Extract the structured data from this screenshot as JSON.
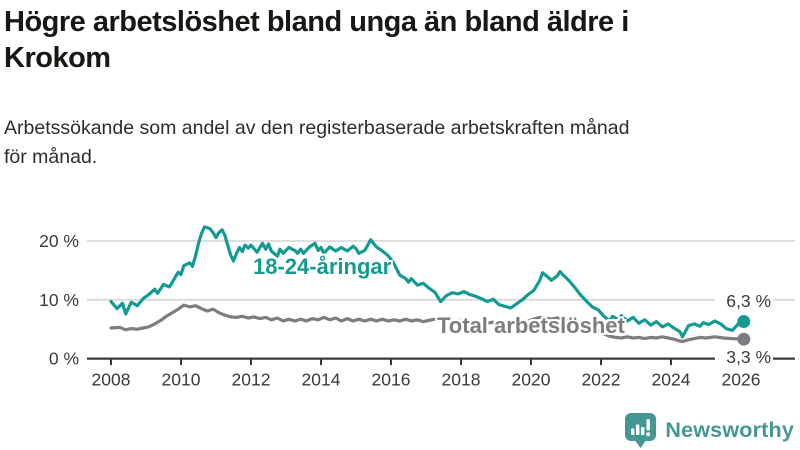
{
  "page": {
    "background": "#ffffff"
  },
  "header": {
    "title_line1": "Högre arbetslöshet bland unga än bland äldre i",
    "title_line2": "Krokom",
    "subtitle_line1": "Arbetssökande som andel av den registerbaserade arbetskraften månad",
    "subtitle_line2": "för månad."
  },
  "chart_data": {
    "type": "line",
    "title": "Högre arbetslöshet bland unga än bland äldre i Krokom",
    "subtitle": "Arbetssökande som andel av den registerbaserade arbetskraften månad för månad.",
    "unit": "%",
    "grid": true,
    "legend": "inline-labels",
    "xlim": [
      2008,
      2026.3
    ],
    "ylim": [
      0,
      25
    ],
    "x_ticks": [
      "2008",
      "2010",
      "2012",
      "2014",
      "2016",
      "2018",
      "2020",
      "2022",
      "2024",
      "2026"
    ],
    "y_ticks": [
      {
        "label": "20 %",
        "value": 20
      },
      {
        "label": "10 %",
        "value": 10
      },
      {
        "label": "0 %",
        "value": 0
      }
    ],
    "axis_color": "#3a3a3a",
    "grid_color": "#d9d9d9",
    "tick_label_color": "#3a3a3a",
    "series": [
      {
        "name": "18-24-åringar",
        "color": "#149a93",
        "end_label": "6,3 %",
        "end_value": 6.3,
        "points": [
          [
            2008.0,
            9.7
          ],
          [
            2008.17,
            8.5
          ],
          [
            2008.33,
            9.4
          ],
          [
            2008.42,
            7.6
          ],
          [
            2008.58,
            9.6
          ],
          [
            2008.75,
            9.0
          ],
          [
            2008.92,
            10.2
          ],
          [
            2009.08,
            10.9
          ],
          [
            2009.25,
            11.8
          ],
          [
            2009.33,
            11.1
          ],
          [
            2009.5,
            12.6
          ],
          [
            2009.67,
            12.2
          ],
          [
            2009.83,
            13.8
          ],
          [
            2009.92,
            14.7
          ],
          [
            2010.0,
            14.3
          ],
          [
            2010.08,
            15.8
          ],
          [
            2010.25,
            16.3
          ],
          [
            2010.33,
            15.7
          ],
          [
            2010.42,
            17.6
          ],
          [
            2010.5,
            19.6
          ],
          [
            2010.58,
            21.2
          ],
          [
            2010.67,
            22.4
          ],
          [
            2010.83,
            22.1
          ],
          [
            2010.92,
            21.4
          ],
          [
            2011.0,
            20.6
          ],
          [
            2011.08,
            21.4
          ],
          [
            2011.17,
            21.9
          ],
          [
            2011.25,
            21.0
          ],
          [
            2011.33,
            19.4
          ],
          [
            2011.42,
            17.6
          ],
          [
            2011.5,
            16.6
          ],
          [
            2011.58,
            17.8
          ],
          [
            2011.67,
            18.9
          ],
          [
            2011.75,
            18.2
          ],
          [
            2011.83,
            19.3
          ],
          [
            2011.92,
            18.8
          ],
          [
            2012.0,
            19.3
          ],
          [
            2012.17,
            18.1
          ],
          [
            2012.33,
            19.6
          ],
          [
            2012.42,
            18.6
          ],
          [
            2012.5,
            19.5
          ],
          [
            2012.58,
            18.3
          ],
          [
            2012.75,
            17.4
          ],
          [
            2012.83,
            18.6
          ],
          [
            2012.92,
            17.9
          ],
          [
            2013.08,
            18.9
          ],
          [
            2013.25,
            18.4
          ],
          [
            2013.33,
            17.9
          ],
          [
            2013.42,
            18.6
          ],
          [
            2013.5,
            17.9
          ],
          [
            2013.67,
            19.0
          ],
          [
            2013.83,
            19.6
          ],
          [
            2013.92,
            18.4
          ],
          [
            2014.0,
            18.9
          ],
          [
            2014.08,
            17.9
          ],
          [
            2014.25,
            19.0
          ],
          [
            2014.42,
            18.3
          ],
          [
            2014.58,
            18.9
          ],
          [
            2014.75,
            18.3
          ],
          [
            2014.92,
            19.1
          ],
          [
            2015.0,
            18.7
          ],
          [
            2015.08,
            17.9
          ],
          [
            2015.25,
            18.4
          ],
          [
            2015.42,
            20.2
          ],
          [
            2015.58,
            19.0
          ],
          [
            2015.75,
            18.3
          ],
          [
            2015.92,
            17.5
          ],
          [
            2016.08,
            16.2
          ],
          [
            2016.25,
            14.2
          ],
          [
            2016.42,
            13.6
          ],
          [
            2016.5,
            13.0
          ],
          [
            2016.58,
            13.6
          ],
          [
            2016.75,
            12.5
          ],
          [
            2016.92,
            12.8
          ],
          [
            2017.08,
            12.0
          ],
          [
            2017.25,
            11.3
          ],
          [
            2017.42,
            9.7
          ],
          [
            2017.58,
            10.7
          ],
          [
            2017.75,
            11.2
          ],
          [
            2017.92,
            11.0
          ],
          [
            2018.08,
            11.4
          ],
          [
            2018.25,
            10.9
          ],
          [
            2018.42,
            10.6
          ],
          [
            2018.58,
            10.2
          ],
          [
            2018.75,
            9.7
          ],
          [
            2018.92,
            10.1
          ],
          [
            2019.08,
            9.2
          ],
          [
            2019.25,
            8.9
          ],
          [
            2019.42,
            8.6
          ],
          [
            2019.58,
            9.3
          ],
          [
            2019.75,
            10.0
          ],
          [
            2019.92,
            10.9
          ],
          [
            2020.08,
            11.6
          ],
          [
            2020.25,
            13.3
          ],
          [
            2020.33,
            14.6
          ],
          [
            2020.5,
            13.8
          ],
          [
            2020.58,
            13.3
          ],
          [
            2020.75,
            14.1
          ],
          [
            2020.83,
            14.8
          ],
          [
            2020.92,
            14.2
          ],
          [
            2021.08,
            13.3
          ],
          [
            2021.25,
            12.1
          ],
          [
            2021.42,
            10.8
          ],
          [
            2021.58,
            9.8
          ],
          [
            2021.75,
            8.8
          ],
          [
            2021.92,
            8.3
          ],
          [
            2022.08,
            7.2
          ],
          [
            2022.25,
            6.4
          ],
          [
            2022.33,
            7.2
          ],
          [
            2022.5,
            6.6
          ],
          [
            2022.58,
            7.3
          ],
          [
            2022.75,
            6.4
          ],
          [
            2022.92,
            7.0
          ],
          [
            2023.08,
            6.0
          ],
          [
            2023.25,
            6.6
          ],
          [
            2023.42,
            5.7
          ],
          [
            2023.58,
            6.3
          ],
          [
            2023.75,
            5.4
          ],
          [
            2023.92,
            5.9
          ],
          [
            2024.08,
            5.2
          ],
          [
            2024.25,
            4.6
          ],
          [
            2024.33,
            3.7
          ],
          [
            2024.5,
            5.6
          ],
          [
            2024.67,
            5.9
          ],
          [
            2024.83,
            5.5
          ],
          [
            2024.92,
            6.1
          ],
          [
            2025.08,
            5.8
          ],
          [
            2025.25,
            6.4
          ],
          [
            2025.42,
            5.9
          ],
          [
            2025.58,
            5.1
          ],
          [
            2025.75,
            4.8
          ],
          [
            2025.92,
            5.9
          ],
          [
            2026.08,
            6.3
          ]
        ]
      },
      {
        "name": "Total arbetslöshet",
        "color": "#7d7d81",
        "end_label": "3,3 %",
        "end_value": 3.3,
        "points": [
          [
            2008.0,
            5.2
          ],
          [
            2008.25,
            5.3
          ],
          [
            2008.42,
            4.9
          ],
          [
            2008.58,
            5.1
          ],
          [
            2008.75,
            5.0
          ],
          [
            2008.92,
            5.2
          ],
          [
            2009.08,
            5.4
          ],
          [
            2009.25,
            5.9
          ],
          [
            2009.42,
            6.5
          ],
          [
            2009.58,
            7.2
          ],
          [
            2009.75,
            7.8
          ],
          [
            2009.92,
            8.4
          ],
          [
            2010.08,
            9.1
          ],
          [
            2010.25,
            8.8
          ],
          [
            2010.42,
            9.0
          ],
          [
            2010.58,
            8.5
          ],
          [
            2010.75,
            8.1
          ],
          [
            2010.92,
            8.4
          ],
          [
            2011.08,
            7.8
          ],
          [
            2011.25,
            7.4
          ],
          [
            2011.42,
            7.1
          ],
          [
            2011.58,
            7.0
          ],
          [
            2011.75,
            7.2
          ],
          [
            2011.92,
            6.9
          ],
          [
            2012.08,
            7.1
          ],
          [
            2012.25,
            6.8
          ],
          [
            2012.42,
            7.0
          ],
          [
            2012.58,
            6.6
          ],
          [
            2012.75,
            6.9
          ],
          [
            2012.92,
            6.4
          ],
          [
            2013.08,
            6.7
          ],
          [
            2013.25,
            6.4
          ],
          [
            2013.42,
            6.7
          ],
          [
            2013.58,
            6.4
          ],
          [
            2013.75,
            6.8
          ],
          [
            2013.92,
            6.6
          ],
          [
            2014.08,
            7.0
          ],
          [
            2014.25,
            6.6
          ],
          [
            2014.42,
            6.9
          ],
          [
            2014.58,
            6.4
          ],
          [
            2014.75,
            6.8
          ],
          [
            2014.92,
            6.4
          ],
          [
            2015.08,
            6.7
          ],
          [
            2015.25,
            6.4
          ],
          [
            2015.42,
            6.7
          ],
          [
            2015.58,
            6.4
          ],
          [
            2015.75,
            6.7
          ],
          [
            2015.92,
            6.4
          ],
          [
            2016.08,
            6.6
          ],
          [
            2016.25,
            6.4
          ],
          [
            2016.42,
            6.7
          ],
          [
            2016.58,
            6.4
          ],
          [
            2016.75,
            6.6
          ],
          [
            2016.92,
            6.3
          ],
          [
            2017.08,
            6.5
          ],
          [
            2017.25,
            6.7
          ],
          [
            2017.42,
            6.4
          ],
          [
            2017.58,
            6.6
          ],
          [
            2017.75,
            6.3
          ],
          [
            2017.92,
            6.5
          ],
          [
            2018.08,
            6.2
          ],
          [
            2018.25,
            6.4
          ],
          [
            2018.42,
            6.1
          ],
          [
            2018.58,
            6.3
          ],
          [
            2018.75,
            6.0
          ],
          [
            2018.92,
            6.2
          ],
          [
            2019.08,
            5.9
          ],
          [
            2019.25,
            6.0
          ],
          [
            2019.42,
            5.8
          ],
          [
            2019.58,
            6.0
          ],
          [
            2019.75,
            6.2
          ],
          [
            2019.92,
            6.4
          ],
          [
            2020.08,
            6.7
          ],
          [
            2020.25,
            7.0
          ],
          [
            2020.42,
            6.9
          ],
          [
            2020.58,
            6.7
          ],
          [
            2020.75,
            6.9
          ],
          [
            2020.92,
            6.6
          ],
          [
            2021.08,
            6.4
          ],
          [
            2021.25,
            6.2
          ],
          [
            2021.42,
            5.9
          ],
          [
            2021.58,
            5.5
          ],
          [
            2021.75,
            5.1
          ],
          [
            2021.92,
            4.7
          ],
          [
            2022.08,
            4.2
          ],
          [
            2022.25,
            3.8
          ],
          [
            2022.42,
            3.6
          ],
          [
            2022.58,
            3.5
          ],
          [
            2022.75,
            3.7
          ],
          [
            2022.92,
            3.5
          ],
          [
            2023.08,
            3.6
          ],
          [
            2023.25,
            3.4
          ],
          [
            2023.42,
            3.6
          ],
          [
            2023.58,
            3.5
          ],
          [
            2023.75,
            3.7
          ],
          [
            2023.92,
            3.5
          ],
          [
            2024.08,
            3.3
          ],
          [
            2024.25,
            3.0
          ],
          [
            2024.33,
            2.9
          ],
          [
            2024.5,
            3.2
          ],
          [
            2024.67,
            3.4
          ],
          [
            2024.83,
            3.6
          ],
          [
            2025.0,
            3.5
          ],
          [
            2025.25,
            3.7
          ],
          [
            2025.5,
            3.5
          ],
          [
            2025.75,
            3.4
          ],
          [
            2026.08,
            3.3
          ]
        ]
      }
    ]
  },
  "footer": {
    "brand": "Newsworthy",
    "brand_color": "#459793",
    "logo_icon": "newsworthy-pin-barchart-icon"
  }
}
